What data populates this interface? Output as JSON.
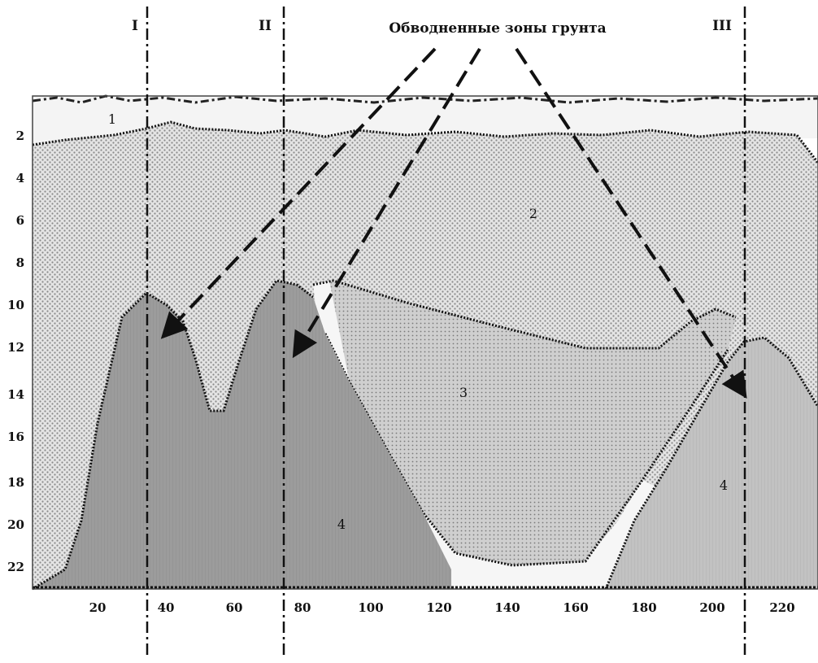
{
  "title": "Обводненные зоны грунта",
  "profile_markers": [
    "I",
    "II",
    "III"
  ],
  "zone_labels": {
    "z1": "1",
    "z2": "2",
    "z3": "3",
    "z4_left": "4",
    "z4_right": "4"
  },
  "x_ticks": [
    "20",
    "40",
    "60",
    "80",
    "100",
    "120",
    "140",
    "160",
    "180",
    "200",
    "220"
  ],
  "y_ticks": [
    "2",
    "4",
    "6",
    "8",
    "10",
    "12",
    "14",
    "16",
    "18",
    "20",
    "22"
  ],
  "colors": {
    "zone2_fill": "#d9d9d9",
    "zone3_fill": "#c8c8c8",
    "zone4_fill": "#9a9a9a",
    "zone4_right_fill": "#bdbdbd",
    "lines": "#111111"
  }
}
